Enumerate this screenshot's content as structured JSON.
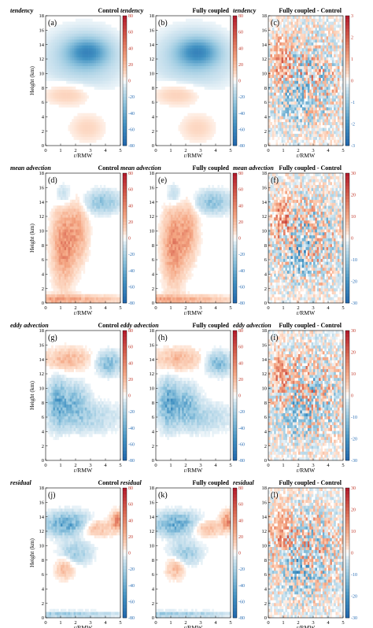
{
  "chart_data": [
    {
      "panel": "a",
      "type": "heatmap",
      "title_left": "tendency",
      "title_right": "Control",
      "xlabel": "r/RMW",
      "ylabel": "Height (km)",
      "x_ticks": [
        0,
        1,
        2,
        3,
        4,
        5
      ],
      "y_ticks": [
        0,
        2,
        4,
        6,
        8,
        10,
        12,
        14,
        16,
        18
      ],
      "xlim": [
        0,
        5
      ],
      "ylim": [
        0,
        18
      ],
      "colorbar": [
        80,
        60,
        40,
        20,
        0,
        -20,
        -40,
        -60,
        -80
      ],
      "clim": [
        -80,
        80
      ]
    },
    {
      "panel": "b",
      "type": "heatmap",
      "title_left": "tendency",
      "title_right": "Fully coupled",
      "xlabel": "r/RMW",
      "ylabel": "",
      "x_ticks": [
        0,
        1,
        2,
        3,
        4,
        5
      ],
      "y_ticks": [
        0,
        2,
        4,
        6,
        8,
        10,
        12,
        14,
        16,
        18
      ],
      "xlim": [
        0,
        5
      ],
      "ylim": [
        0,
        18
      ],
      "colorbar": [
        80,
        60,
        40,
        20,
        0,
        -20,
        -40,
        -60,
        -80
      ],
      "clim": [
        -80,
        80
      ]
    },
    {
      "panel": "c",
      "type": "heatmap",
      "title_left": "tendency",
      "title_right": "Fully coupled - Control",
      "xlabel": "r/RMW",
      "ylabel": "",
      "x_ticks": [
        0,
        1,
        2,
        3,
        4,
        5
      ],
      "y_ticks": [
        0,
        2,
        4,
        6,
        8,
        10,
        12,
        14,
        16,
        18
      ],
      "xlim": [
        0,
        5
      ],
      "ylim": [
        0,
        18
      ],
      "colorbar": [
        3,
        2,
        1,
        0,
        -1,
        -2,
        -3
      ],
      "clim": [
        -3,
        3
      ]
    },
    {
      "panel": "d",
      "type": "heatmap",
      "title_left": "mean advection",
      "title_right": "Control",
      "xlabel": "r/RMW",
      "ylabel": "Height (km)",
      "x_ticks": [
        0,
        1,
        2,
        3,
        4,
        5
      ],
      "y_ticks": [
        0,
        2,
        4,
        6,
        8,
        10,
        12,
        14,
        16,
        18
      ],
      "xlim": [
        0,
        5
      ],
      "ylim": [
        0,
        18
      ],
      "colorbar": [
        80,
        60,
        40,
        20,
        0,
        -20,
        -40,
        -60,
        -80
      ],
      "clim": [
        -80,
        80
      ]
    },
    {
      "panel": "e",
      "type": "heatmap",
      "title_left": "mean advection",
      "title_right": "Fully coupled",
      "xlabel": "r/RMW",
      "ylabel": "",
      "x_ticks": [
        0,
        1,
        2,
        3,
        4,
        5
      ],
      "y_ticks": [
        0,
        2,
        4,
        6,
        8,
        10,
        12,
        14,
        16,
        18
      ],
      "xlim": [
        0,
        5
      ],
      "ylim": [
        0,
        18
      ],
      "colorbar": [
        80,
        60,
        40,
        20,
        0,
        -20,
        -40,
        -60,
        -80
      ],
      "clim": [
        -80,
        80
      ]
    },
    {
      "panel": "f",
      "type": "heatmap",
      "title_left": "mean advection",
      "title_right": "Fully coupled - Control",
      "xlabel": "r/RMW",
      "ylabel": "",
      "x_ticks": [
        0,
        1,
        2,
        3,
        4,
        5
      ],
      "y_ticks": [
        0,
        2,
        4,
        6,
        8,
        10,
        12,
        14,
        16,
        18
      ],
      "xlim": [
        0,
        5
      ],
      "ylim": [
        0,
        18
      ],
      "colorbar": [
        30,
        20,
        10,
        0,
        -10,
        -20,
        -30
      ],
      "clim": [
        -30,
        30
      ]
    },
    {
      "panel": "g",
      "type": "heatmap",
      "title_left": "eddy advection",
      "title_right": "Control",
      "xlabel": "r/RMW",
      "ylabel": "Height (km)",
      "x_ticks": [
        0,
        1,
        2,
        3,
        4,
        5
      ],
      "y_ticks": [
        0,
        2,
        4,
        6,
        8,
        10,
        12,
        14,
        16,
        18
      ],
      "xlim": [
        0,
        5
      ],
      "ylim": [
        0,
        18
      ],
      "colorbar": [
        80,
        60,
        40,
        20,
        0,
        -20,
        -40,
        -60,
        -80
      ],
      "clim": [
        -80,
        80
      ]
    },
    {
      "panel": "h",
      "type": "heatmap",
      "title_left": "eddy advection",
      "title_right": "Fully coupled",
      "xlabel": "r/RMW",
      "ylabel": "",
      "x_ticks": [
        0,
        1,
        2,
        3,
        4,
        5
      ],
      "y_ticks": [
        0,
        2,
        4,
        6,
        8,
        10,
        12,
        14,
        16,
        18
      ],
      "xlim": [
        0,
        5
      ],
      "ylim": [
        0,
        18
      ],
      "colorbar": [
        80,
        60,
        40,
        20,
        0,
        -20,
        -40,
        -60,
        -80
      ],
      "clim": [
        -80,
        80
      ]
    },
    {
      "panel": "i",
      "type": "heatmap",
      "title_left": "eddy advection",
      "title_right": "Fully coupled - Control",
      "xlabel": "r/RMW",
      "ylabel": "",
      "x_ticks": [
        0,
        1,
        2,
        3,
        4,
        5
      ],
      "y_ticks": [
        0,
        2,
        4,
        6,
        8,
        10,
        12,
        14,
        16,
        18
      ],
      "xlim": [
        0,
        5
      ],
      "ylim": [
        0,
        18
      ],
      "colorbar": [
        30,
        20,
        10,
        0,
        -10,
        -20,
        -30
      ],
      "clim": [
        -30,
        30
      ]
    },
    {
      "panel": "j",
      "type": "heatmap",
      "title_left": "residual",
      "title_right": "Control",
      "xlabel": "r/RMW",
      "ylabel": "Height (km)",
      "x_ticks": [
        0,
        1,
        2,
        3,
        4,
        5
      ],
      "y_ticks": [
        0,
        2,
        4,
        6,
        8,
        10,
        12,
        14,
        16,
        18
      ],
      "xlim": [
        0,
        5
      ],
      "ylim": [
        0,
        18
      ],
      "colorbar": [
        80,
        60,
        40,
        20,
        0,
        -20,
        -40,
        -60,
        -80
      ],
      "clim": [
        -80,
        80
      ]
    },
    {
      "panel": "k",
      "type": "heatmap",
      "title_left": "residual",
      "title_right": "Fully coupled",
      "xlabel": "r/RMW",
      "ylabel": "",
      "x_ticks": [
        0,
        1,
        2,
        3,
        4,
        5
      ],
      "y_ticks": [
        0,
        2,
        4,
        6,
        8,
        10,
        12,
        14,
        16,
        18
      ],
      "xlim": [
        0,
        5
      ],
      "ylim": [
        0,
        18
      ],
      "colorbar": [
        80,
        60,
        40,
        20,
        0,
        -20,
        -40,
        -60,
        -80
      ],
      "clim": [
        -80,
        80
      ]
    },
    {
      "panel": "l",
      "type": "heatmap",
      "title_left": "residual",
      "title_right": "Fully coupled - Control",
      "xlabel": "r/RMW",
      "ylabel": "",
      "x_ticks": [
        0,
        1,
        2,
        3,
        4,
        5
      ],
      "y_ticks": [
        0,
        2,
        4,
        6,
        8,
        10,
        12,
        14,
        16,
        18
      ],
      "xlim": [
        0,
        5
      ],
      "ylim": [
        0,
        18
      ],
      "colorbar": [
        30,
        20,
        10,
        0,
        -10,
        -20,
        -30
      ],
      "clim": [
        -30,
        30
      ]
    }
  ]
}
